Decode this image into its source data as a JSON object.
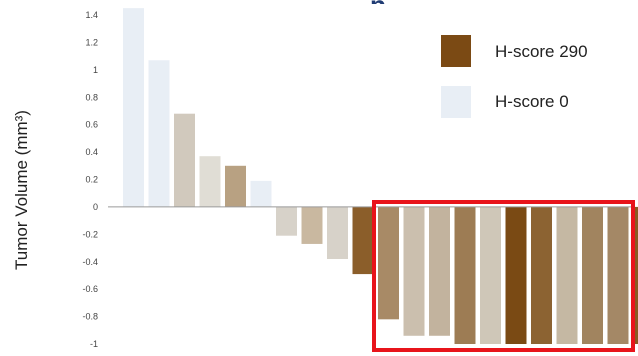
{
  "chart_data": {
    "type": "bar",
    "ylabel": "Tumor Volume (mm³)",
    "ylim": [
      -1.0,
      1.4
    ],
    "yticks": [
      "1.4",
      "1.2",
      "1",
      "0.8",
      "0.6",
      "0.4",
      "0.2",
      "0",
      "-0.2",
      "-0.4",
      "-0.6",
      "-0.8",
      "-1"
    ],
    "ytick_values": [
      1.4,
      1.2,
      1.0,
      0.8,
      0.6,
      0.4,
      0.2,
      0,
      -0.2,
      -0.4,
      -0.6,
      -0.8,
      -1.0
    ],
    "grid": false,
    "values": [
      1.45,
      1.07,
      0.68,
      0.37,
      0.3,
      0.19,
      -0.21,
      -0.27,
      -0.38,
      -0.49,
      -0.82,
      -0.94,
      -0.94,
      -1.0,
      -1.0,
      -1.0,
      -1.0,
      -1.0,
      -1.0,
      -1.0,
      -1.0
    ],
    "colors": [
      "#e8eef5",
      "#e8eef5",
      "#d1c9bd",
      "#e0ddd5",
      "#b8a182",
      "#e8eef5",
      "#d7d2c9",
      "#c9b8a0",
      "#d7d2c9",
      "#8b5e2a",
      "#a88a66",
      "#cbbfae",
      "#c2b39e",
      "#9d7c54",
      "#cfc7b8",
      "#7a4a14",
      "#8c6332",
      "#c5b8a3",
      "#a1845f",
      "#a48866",
      "#8b5a22"
    ],
    "legend": [
      {
        "label": "H-score 290",
        "color": "#7b4a14"
      },
      {
        "label": "H-score 0",
        "color": "#e8eef5"
      }
    ],
    "legend_position": "top-right",
    "highlight_color": "#e8141b"
  }
}
